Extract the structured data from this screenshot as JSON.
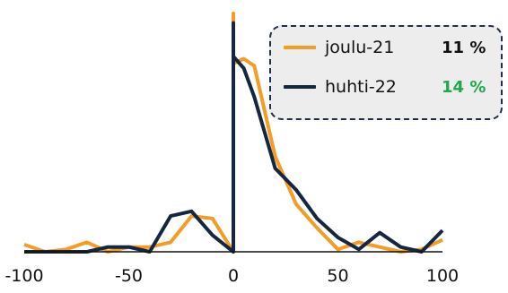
{
  "chart_data": {
    "type": "line",
    "xlim": [
      -100,
      100
    ],
    "ylim": [
      0,
      100
    ],
    "x_ticks": [
      "-100",
      "-50",
      "0",
      "50",
      "100"
    ],
    "grid": false,
    "legend_position": "top-right",
    "series": [
      {
        "name": "joulu-21",
        "color": "#f39c26",
        "legend_value": "11 %",
        "legend_value_color": "#111111",
        "x": [
          -100,
          -90,
          -80,
          -70,
          -60,
          -50,
          -40,
          -30,
          -20,
          -10,
          0,
          0,
          0,
          5,
          10,
          20,
          30,
          40,
          50,
          60,
          70,
          80,
          90,
          100
        ],
        "y": [
          3,
          0,
          1,
          4,
          0,
          2,
          2,
          4,
          15,
          14,
          0,
          100,
          79,
          81,
          78,
          40,
          20,
          10,
          1,
          4,
          2,
          0,
          1,
          5
        ]
      },
      {
        "name": "huhti-22",
        "color": "#142642",
        "legend_value": "14 %",
        "legend_value_color": "#1fa84f",
        "x": [
          -100,
          -90,
          -80,
          -70,
          -60,
          -50,
          -40,
          -30,
          -20,
          -10,
          0,
          0,
          0,
          5,
          10,
          20,
          30,
          40,
          50,
          60,
          70,
          80,
          90,
          100
        ],
        "y": [
          0,
          0,
          0,
          0,
          2,
          2,
          0,
          15,
          17,
          7,
          0,
          96,
          82,
          77,
          65,
          35,
          26,
          14,
          6,
          1,
          8,
          2,
          0,
          9
        ]
      }
    ]
  }
}
